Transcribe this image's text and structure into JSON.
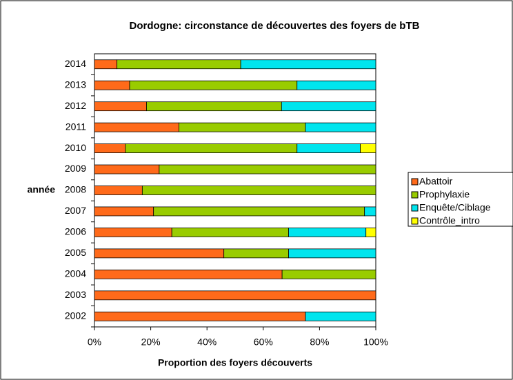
{
  "chart_data": {
    "type": "stacked_barh",
    "title": "Dordogne: circonstance de découvertes des foyers de bTB",
    "x_label": "Proportion des foyers découverts",
    "y_label": "année",
    "categories": [
      "2002",
      "2003",
      "2004",
      "2005",
      "2006",
      "2007",
      "2008",
      "2009",
      "2010",
      "2011",
      "2012",
      "2013",
      "2014"
    ],
    "series": [
      {
        "name": "Abattoir",
        "color": "#ff6a1a",
        "values": [
          75,
          100,
          66.7,
          46,
          27.5,
          21,
          17,
          23,
          11,
          30,
          18.5,
          12.5,
          8
        ]
      },
      {
        "name": "Prophylaxie",
        "color": "#99cc00",
        "values": [
          0,
          0,
          33.3,
          23,
          41.5,
          75,
          83,
          77,
          61,
          45,
          48,
          59.5,
          44
        ]
      },
      {
        "name": "Enquête/Ciblage",
        "color": "#00e5ee",
        "values": [
          25,
          0,
          0,
          31,
          27.5,
          4,
          0,
          0,
          22.5,
          25,
          33.5,
          28,
          48
        ]
      },
      {
        "name": "Contrôle_intro",
        "color": "#ffff00",
        "values": [
          0,
          0,
          0,
          0,
          3.5,
          0,
          0,
          0,
          5.5,
          0,
          0,
          0,
          0
        ]
      }
    ],
    "xlim": [
      0,
      100
    ],
    "xticks": [
      {
        "value": 0,
        "label": "0%"
      },
      {
        "value": 20,
        "label": "20%"
      },
      {
        "value": 40,
        "label": "40%"
      },
      {
        "value": 60,
        "label": "60%"
      },
      {
        "value": 80,
        "label": "80%"
      },
      {
        "value": 100,
        "label": "100%"
      }
    ],
    "legend": "right"
  }
}
